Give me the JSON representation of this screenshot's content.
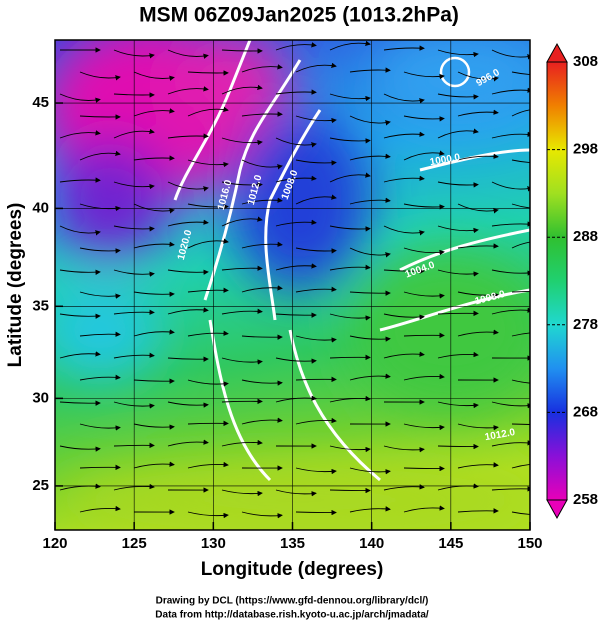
{
  "chart_data": {
    "type": "map",
    "title": "MSM 06Z09Jan2025 (1013.2hPa)",
    "xlabel": "Longitude (degrees)",
    "ylabel": "Latitude  (degrees)",
    "xlim": [
      120,
      150
    ],
    "ylim": [
      22.4,
      47.8
    ],
    "xticks": [
      120,
      125,
      130,
      135,
      140,
      145,
      150
    ],
    "yticks": [
      25,
      30,
      35,
      40,
      45
    ],
    "projection": "mercator",
    "grid": true,
    "colorbar": {
      "lim": [
        258,
        308
      ],
      "ticks": [
        258,
        268,
        278,
        288,
        298,
        308
      ]
    },
    "contour_labels": [
      "1020.0",
      "1016.0",
      "1012.0",
      "1008.0",
      "1004.0",
      "1000.0",
      "996.0",
      "1008.0",
      "1012.0"
    ],
    "credits": [
      "Drawing by DCL (https://www.gfd-dennou.org/library/dcl/)",
      "Data from http://database.rish.kyoto-u.ac.jp/arch/jmadata/"
    ]
  }
}
